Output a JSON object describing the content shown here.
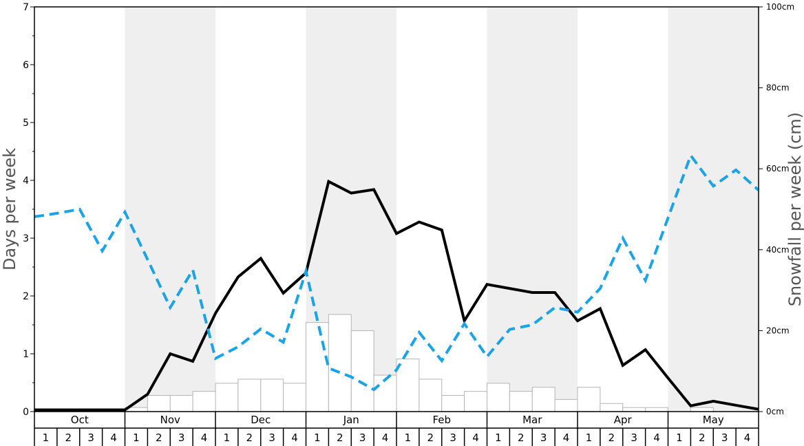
{
  "chart_data": {
    "type": "line",
    "ylabel_left": "Days per week",
    "ylabel_right": "Snowfall per week (cm)",
    "ylim_left": [
      0,
      7
    ],
    "ylim_right": [
      0,
      100
    ],
    "y_ticks_left": [
      "0",
      "1",
      "2",
      "3",
      "4",
      "5",
      "6",
      "7"
    ],
    "y_ticks_right": [
      "0cm",
      "20cm",
      "40cm",
      "60cm",
      "80cm",
      "100cm"
    ],
    "months": [
      "Oct",
      "Nov",
      "Dec",
      "Jan",
      "Feb",
      "Mar",
      "Apr",
      "May"
    ],
    "weeks": [
      "1",
      "2",
      "3",
      "4"
    ],
    "series": [
      {
        "axis": "left",
        "style": "solid",
        "color": "#000000",
        "values": [
          0.03,
          0.03,
          0.03,
          0.03,
          0.03,
          0.3,
          1.0,
          0.87,
          1.7,
          2.33,
          2.65,
          2.05,
          2.4,
          3.98,
          3.78,
          3.84,
          3.08,
          3.28,
          3.14,
          1.57,
          2.2,
          2.13,
          2.06,
          2.06,
          1.57,
          1.78,
          0.8,
          1.07,
          0.58,
          0.1,
          0.18,
          0.11,
          0.04
        ]
      },
      {
        "axis": "left",
        "style": "dashed",
        "color": "#1aa3e6",
        "values": [
          3.37,
          3.43,
          3.5,
          2.78,
          3.45,
          2.63,
          1.8,
          2.45,
          0.92,
          1.12,
          1.43,
          1.2,
          2.43,
          0.75,
          0.6,
          0.38,
          0.72,
          1.37,
          0.88,
          1.52,
          0.95,
          1.42,
          1.5,
          1.8,
          1.72,
          2.13,
          3.0,
          2.27,
          3.35,
          4.43,
          3.9,
          4.18,
          3.83
        ]
      }
    ],
    "snowfall_bars_cm": [
      0,
      0,
      0,
      0,
      1,
      4,
      4,
      5,
      7,
      8,
      8,
      7,
      22,
      24,
      20,
      9,
      13,
      8,
      4,
      5,
      7,
      5,
      6,
      3,
      6,
      2,
      1,
      1,
      0,
      1,
      0,
      0
    ]
  },
  "colors": {
    "band": "#efefef",
    "bar_fill": "#ffffff",
    "bar_stroke": "#b5b5b5",
    "axis_label": "#555555"
  }
}
